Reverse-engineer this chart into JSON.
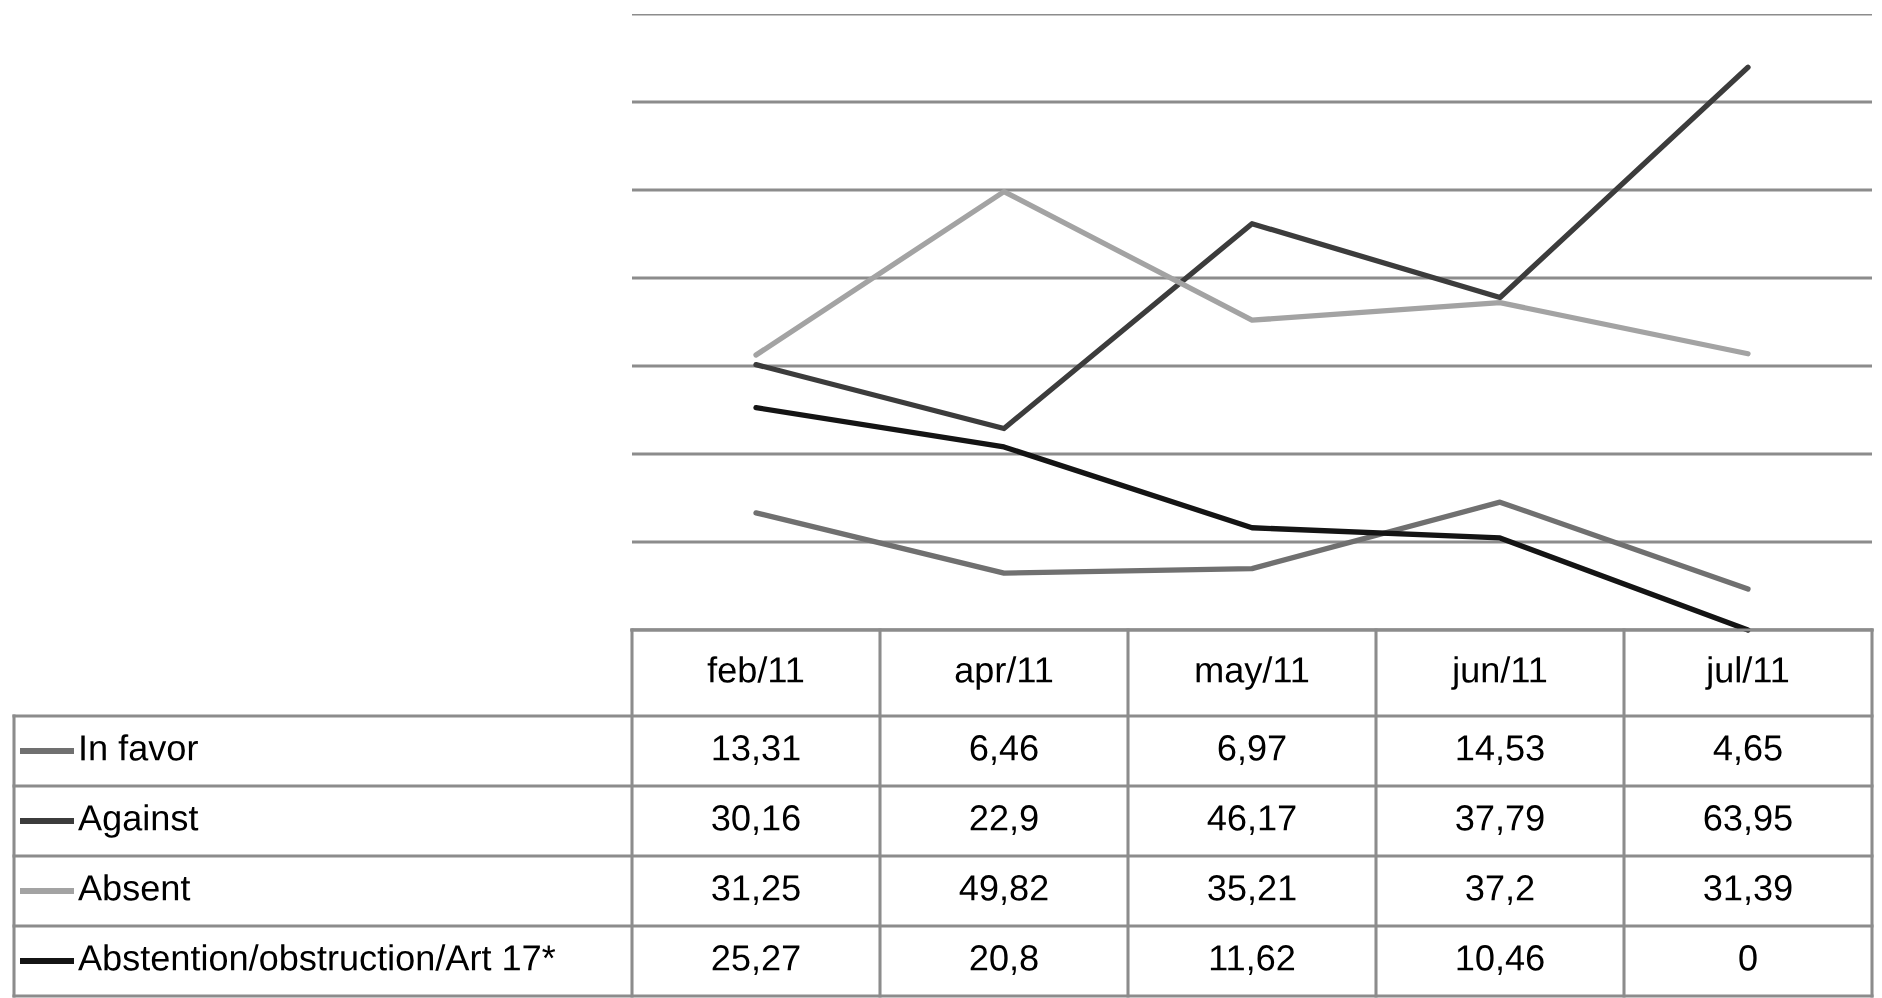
{
  "chart_data": {
    "type": "line",
    "categories": [
      "feb/11",
      "apr/11",
      "may/11",
      "jun/11",
      "jul/11"
    ],
    "series": [
      {
        "name": "In favor",
        "color": "#707070",
        "values": [
          13.31,
          6.46,
          6.97,
          14.53,
          4.65
        ],
        "value_labels": [
          "13,31",
          "6,46",
          "6,97",
          "14,53",
          "4,65"
        ]
      },
      {
        "name": "Against",
        "color": "#3c3c3c",
        "values": [
          30.16,
          22.9,
          46.17,
          37.79,
          63.95
        ],
        "value_labels": [
          "30,16",
          "22,9",
          "46,17",
          "37,79",
          "63,95"
        ]
      },
      {
        "name": "Absent",
        "color": "#a3a3a3",
        "values": [
          31.25,
          49.82,
          35.21,
          37.2,
          31.39
        ],
        "value_labels": [
          "31,25",
          "49,82",
          "35,21",
          "37,2",
          "31,39"
        ]
      },
      {
        "name": "Abstention/obstruction/Art 17*",
        "color": "#141414",
        "values": [
          25.27,
          20.8,
          11.62,
          10.46,
          0
        ],
        "value_labels": [
          "25,27",
          "20,8",
          "11,62",
          "10,46",
          "0"
        ]
      }
    ],
    "ylim": [
      0,
      70
    ],
    "yticks": [
      {
        "value": 0,
        "label": null
      },
      {
        "value": 10,
        "label": null
      },
      {
        "value": 20,
        "label": null
      },
      {
        "value": 30,
        "label": null
      },
      {
        "value": 40,
        "label": null
      },
      {
        "value": 50,
        "label": null
      },
      {
        "value": 60,
        "label": null
      },
      {
        "value": 70,
        "label": null
      }
    ],
    "grid": "y",
    "legend": "bottom",
    "tick_labels": "x",
    "marker": "none",
    "line_style": "solid"
  }
}
